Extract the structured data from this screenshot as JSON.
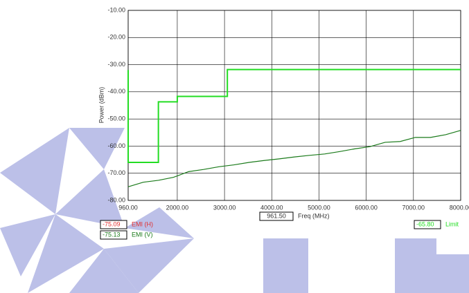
{
  "chart_data": {
    "type": "line",
    "y_label": "Power (dBm)",
    "x_label": "Freq (MHz)",
    "xlim": [
      960,
      8000
    ],
    "ylim": [
      -80,
      -10
    ],
    "xticks": [
      {
        "value": 960,
        "label": "960.00"
      },
      {
        "value": 2000,
        "label": "2000.00"
      },
      {
        "value": 3000,
        "label": "3000.00"
      },
      {
        "value": 4000,
        "label": "4000.00"
      },
      {
        "value": 5000,
        "label": "5000.00"
      },
      {
        "value": 6000,
        "label": "6000.00"
      },
      {
        "value": 7000,
        "label": "7000.00"
      },
      {
        "value": 8000,
        "label": "8000.00"
      }
    ],
    "yticks": [
      {
        "value": -80,
        "label": "-80.00"
      },
      {
        "value": -70,
        "label": "-70.00"
      },
      {
        "value": -60,
        "label": "-60.00"
      },
      {
        "value": -50,
        "label": "-50.00"
      },
      {
        "value": -40,
        "label": "-40.00"
      },
      {
        "value": -30,
        "label": "-30.00"
      },
      {
        "value": -20,
        "label": "-20.00"
      },
      {
        "value": -10,
        "label": "-10.00"
      }
    ],
    "grid": true,
    "series": [
      {
        "name": "Limit",
        "color": "#22dd22",
        "x": [
          960,
          960,
          1600,
          1600,
          2000,
          2000,
          3060,
          3060,
          8000
        ],
        "values": [
          -32,
          -66,
          -66,
          -43.7,
          -43.7,
          -41.7,
          -41.7,
          -31.8,
          -31.8
        ]
      },
      {
        "name": "EMI (V)",
        "color": "#1a7a1a",
        "x": [
          960,
          1280,
          1600,
          1920,
          2240,
          2560,
          2880,
          3200,
          3520,
          3840,
          4160,
          4480,
          4800,
          5120,
          5440,
          5760,
          6080,
          6400,
          6720,
          7040,
          7360,
          7680,
          8000
        ],
        "values": [
          -75.0,
          -73.3,
          -72.6,
          -71.5,
          -69.4,
          -68.6,
          -67.6,
          -66.9,
          -66.0,
          -65.3,
          -64.7,
          -64.0,
          -63.4,
          -62.9,
          -62.0,
          -61.0,
          -60.2,
          -58.6,
          -58.3,
          -56.8,
          -56.8,
          -55.8,
          -54.2
        ]
      }
    ],
    "cursor_freq": "961.50",
    "readouts": [
      {
        "value": "-75.09",
        "label": "EMI (H)",
        "color": "#e03030"
      },
      {
        "value": "-75.13",
        "label": "EMI (V)",
        "color": "#1a7a1a"
      },
      {
        "value": "-65.80",
        "label": "Limit",
        "color": "#22dd22"
      }
    ]
  }
}
